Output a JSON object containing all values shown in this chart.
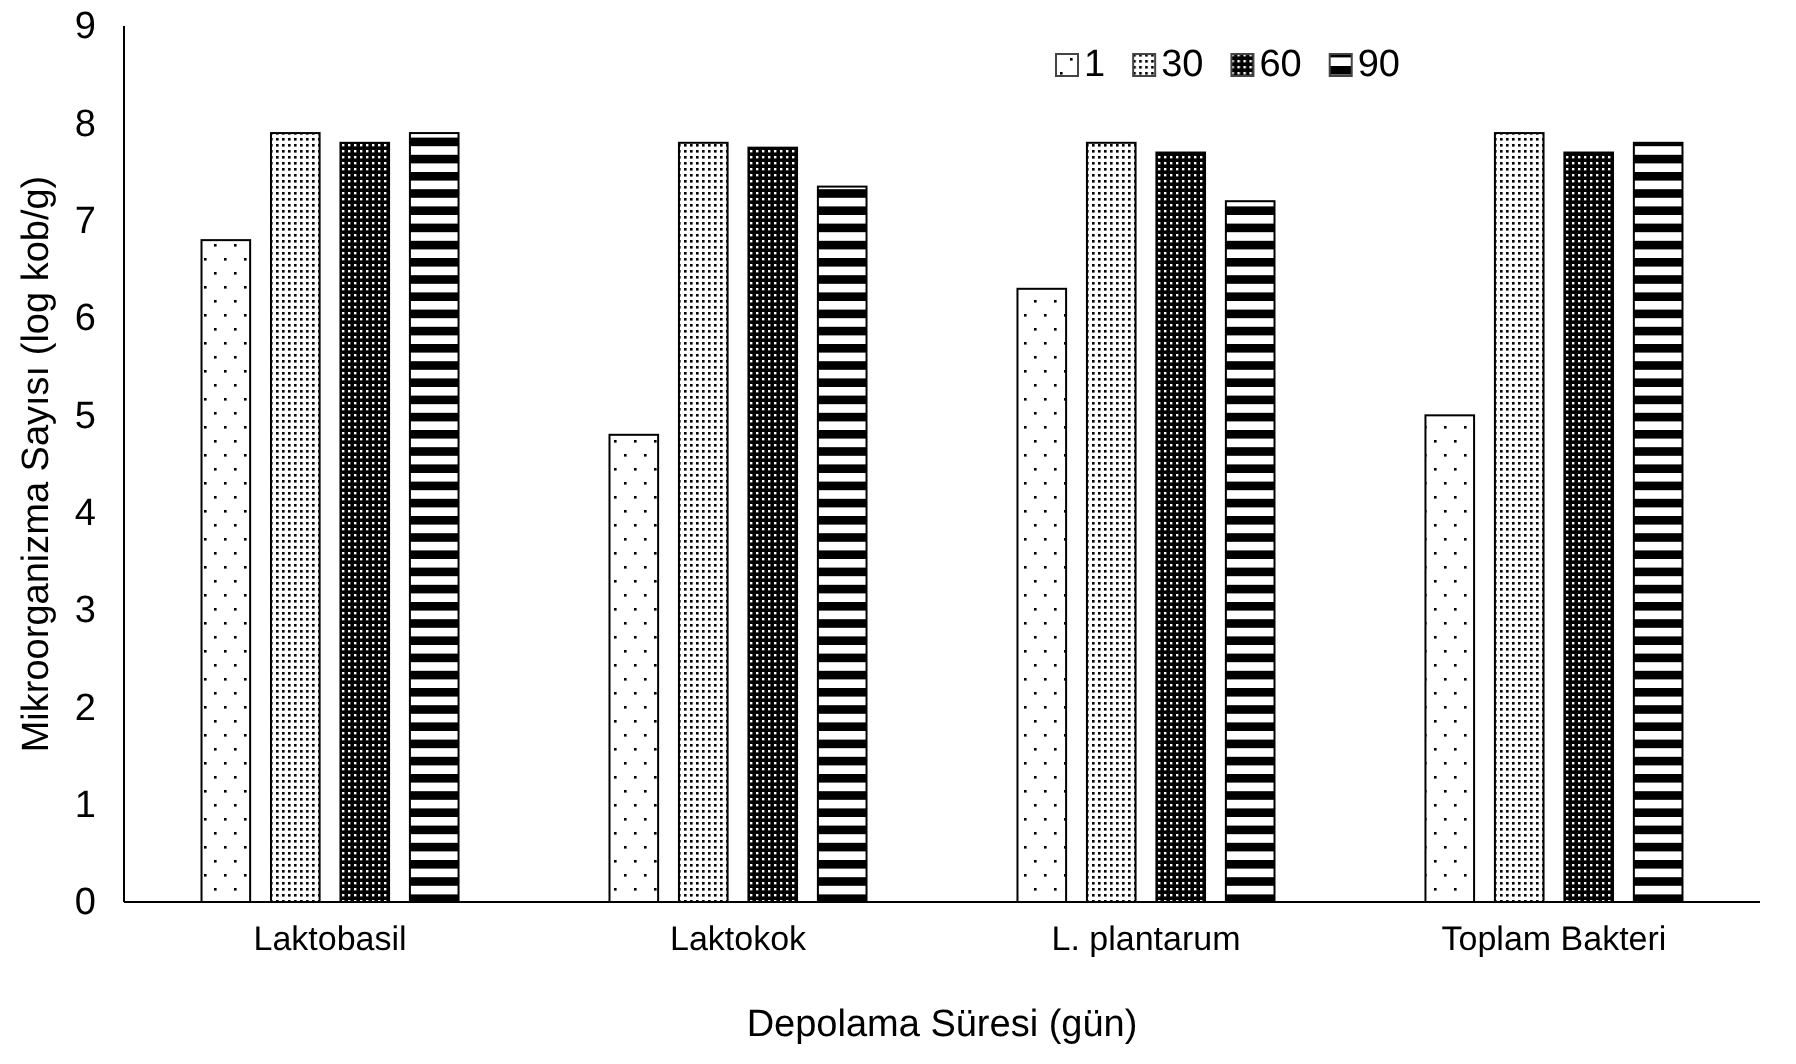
{
  "chart_data": {
    "type": "bar",
    "xlabel": "Depolama Süresi (gün)",
    "ylabel": "Mikroorganizma Sayısı (log kob/g)",
    "categories": [
      "Laktobasil",
      "Laktokok",
      "L. plantarum",
      "Toplam Bakteri"
    ],
    "series": [
      {
        "name": "1",
        "color": "#000000",
        "values": [
          6.8,
          4.8,
          6.3,
          5.0
        ]
      },
      {
        "name": "30",
        "color": "#000000",
        "values": [
          7.9,
          7.8,
          7.8,
          7.9
        ]
      },
      {
        "name": "60",
        "color": "#000000",
        "values": [
          7.8,
          7.75,
          7.7,
          7.7
        ]
      },
      {
        "name": "90",
        "color": "#000000",
        "values": [
          7.9,
          7.35,
          7.2,
          7.8
        ]
      }
    ],
    "ylim": [
      0,
      9
    ],
    "yticks": [
      0,
      1,
      2,
      3,
      4,
      5,
      6,
      7,
      8,
      9
    ],
    "grid": false,
    "legend": "top right"
  }
}
